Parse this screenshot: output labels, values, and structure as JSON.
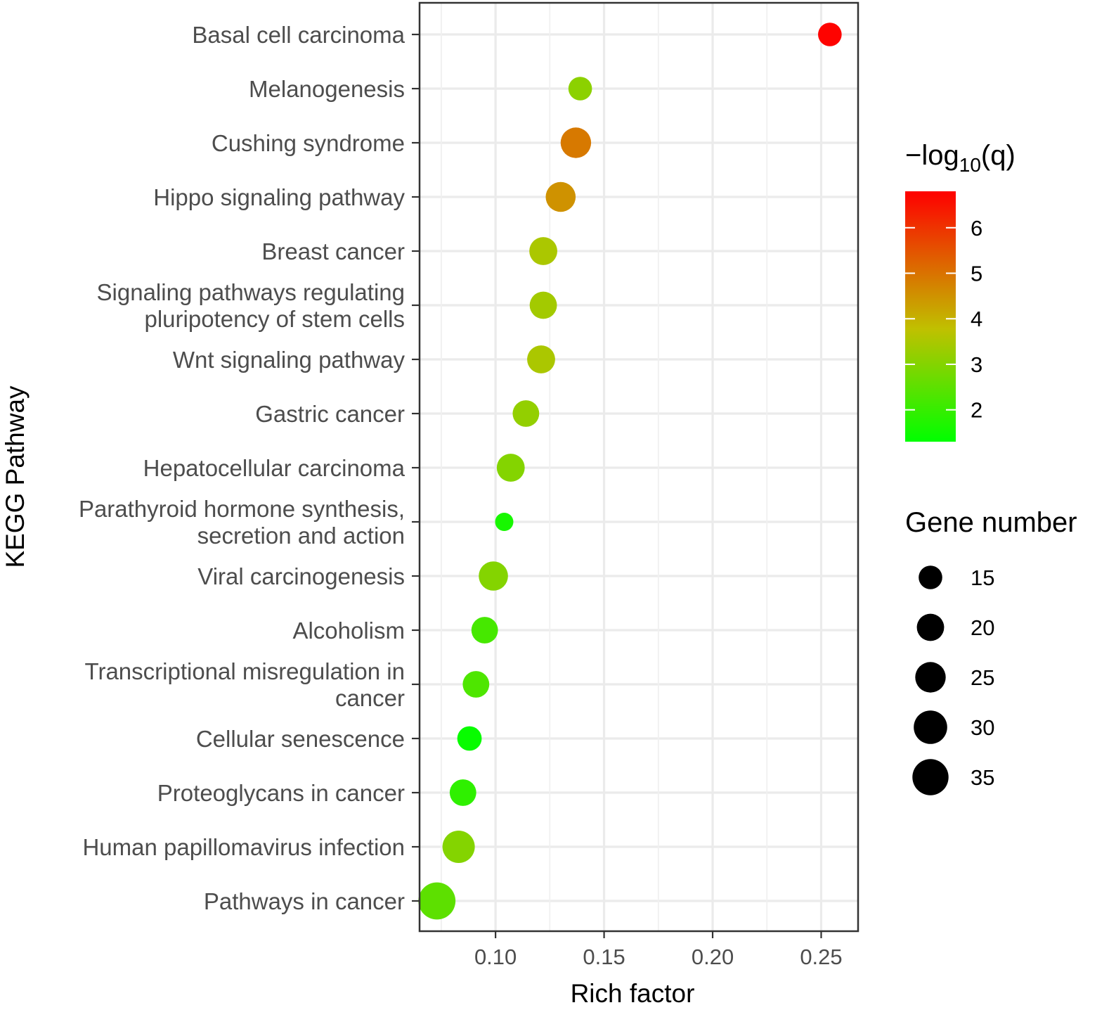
{
  "chart_data": {
    "type": "scatter",
    "xlabel": "Rich factor",
    "ylabel": "KEGG Pathway",
    "xlim": [
      0.065,
      0.267
    ],
    "x_ticks": [
      "0.10",
      "0.15",
      "0.20",
      "0.25"
    ],
    "x_tick_values": [
      0.1,
      0.15,
      0.2,
      0.25
    ],
    "grid": true,
    "color_legend": {
      "title_main": "−log",
      "title_sub": "10",
      "title_end": "(q)",
      "range": [
        1.3,
        6.8
      ],
      "ticks": [
        "2",
        "3",
        "4",
        "5",
        "6"
      ],
      "tick_values": [
        2,
        3,
        4,
        5,
        6
      ],
      "low_color": "#00ff00",
      "mid_color": "#c0c000",
      "high_color": "#ff0000"
    },
    "size_legend": {
      "title": "Gene number",
      "labels": [
        "15",
        "20",
        "25",
        "30",
        "35"
      ],
      "values": [
        15,
        20,
        25,
        30,
        35
      ]
    },
    "points": [
      {
        "pathway": [
          "Basal cell carcinoma"
        ],
        "rich_factor": 0.254,
        "neg_log10_q": 6.75,
        "gene_number": 15
      },
      {
        "pathway": [
          "Melanogenesis"
        ],
        "rich_factor": 0.139,
        "neg_log10_q": 3.1,
        "gene_number": 15
      },
      {
        "pathway": [
          "Cushing syndrome"
        ],
        "rich_factor": 0.137,
        "neg_log10_q": 4.9,
        "gene_number": 25
      },
      {
        "pathway": [
          "Hippo signaling pathway"
        ],
        "rich_factor": 0.13,
        "neg_log10_q": 4.5,
        "gene_number": 24
      },
      {
        "pathway": [
          "Breast cancer"
        ],
        "rich_factor": 0.122,
        "neg_log10_q": 3.5,
        "gene_number": 21
      },
      {
        "pathway": [
          "Signaling pathways regulating",
          "pluripotency of stem cells"
        ],
        "rich_factor": 0.122,
        "neg_log10_q": 3.4,
        "gene_number": 20
      },
      {
        "pathway": [
          "Wnt signaling pathway"
        ],
        "rich_factor": 0.121,
        "neg_log10_q": 3.5,
        "gene_number": 21
      },
      {
        "pathway": [
          "Gastric cancer"
        ],
        "rich_factor": 0.114,
        "neg_log10_q": 3.2,
        "gene_number": 19
      },
      {
        "pathway": [
          "Hepatocellular carcinoma"
        ],
        "rich_factor": 0.107,
        "neg_log10_q": 3.0,
        "gene_number": 21
      },
      {
        "pathway": [
          "Parathyroid hormone synthesis,",
          "secretion and action"
        ],
        "rich_factor": 0.104,
        "neg_log10_q": 1.6,
        "gene_number": 9
      },
      {
        "pathway": [
          "Viral carcinogenesis"
        ],
        "rich_factor": 0.099,
        "neg_log10_q": 3.0,
        "gene_number": 23
      },
      {
        "pathway": [
          "Alcoholism"
        ],
        "rich_factor": 0.095,
        "neg_log10_q": 2.2,
        "gene_number": 19
      },
      {
        "pathway": [
          "Transcriptional misregulation in",
          "cancer"
        ],
        "rich_factor": 0.091,
        "neg_log10_q": 2.3,
        "gene_number": 19
      },
      {
        "pathway": [
          "Cellular senescence"
        ],
        "rich_factor": 0.088,
        "neg_log10_q": 1.4,
        "gene_number": 16
      },
      {
        "pathway": [
          "Proteoglycans in cancer"
        ],
        "rich_factor": 0.085,
        "neg_log10_q": 1.9,
        "gene_number": 19
      },
      {
        "pathway": [
          "Human papillomavirus infection"
        ],
        "rich_factor": 0.083,
        "neg_log10_q": 3.0,
        "gene_number": 28
      },
      {
        "pathway": [
          "Pathways in cancer"
        ],
        "rich_factor": 0.073,
        "neg_log10_q": 2.5,
        "gene_number": 37
      }
    ]
  }
}
